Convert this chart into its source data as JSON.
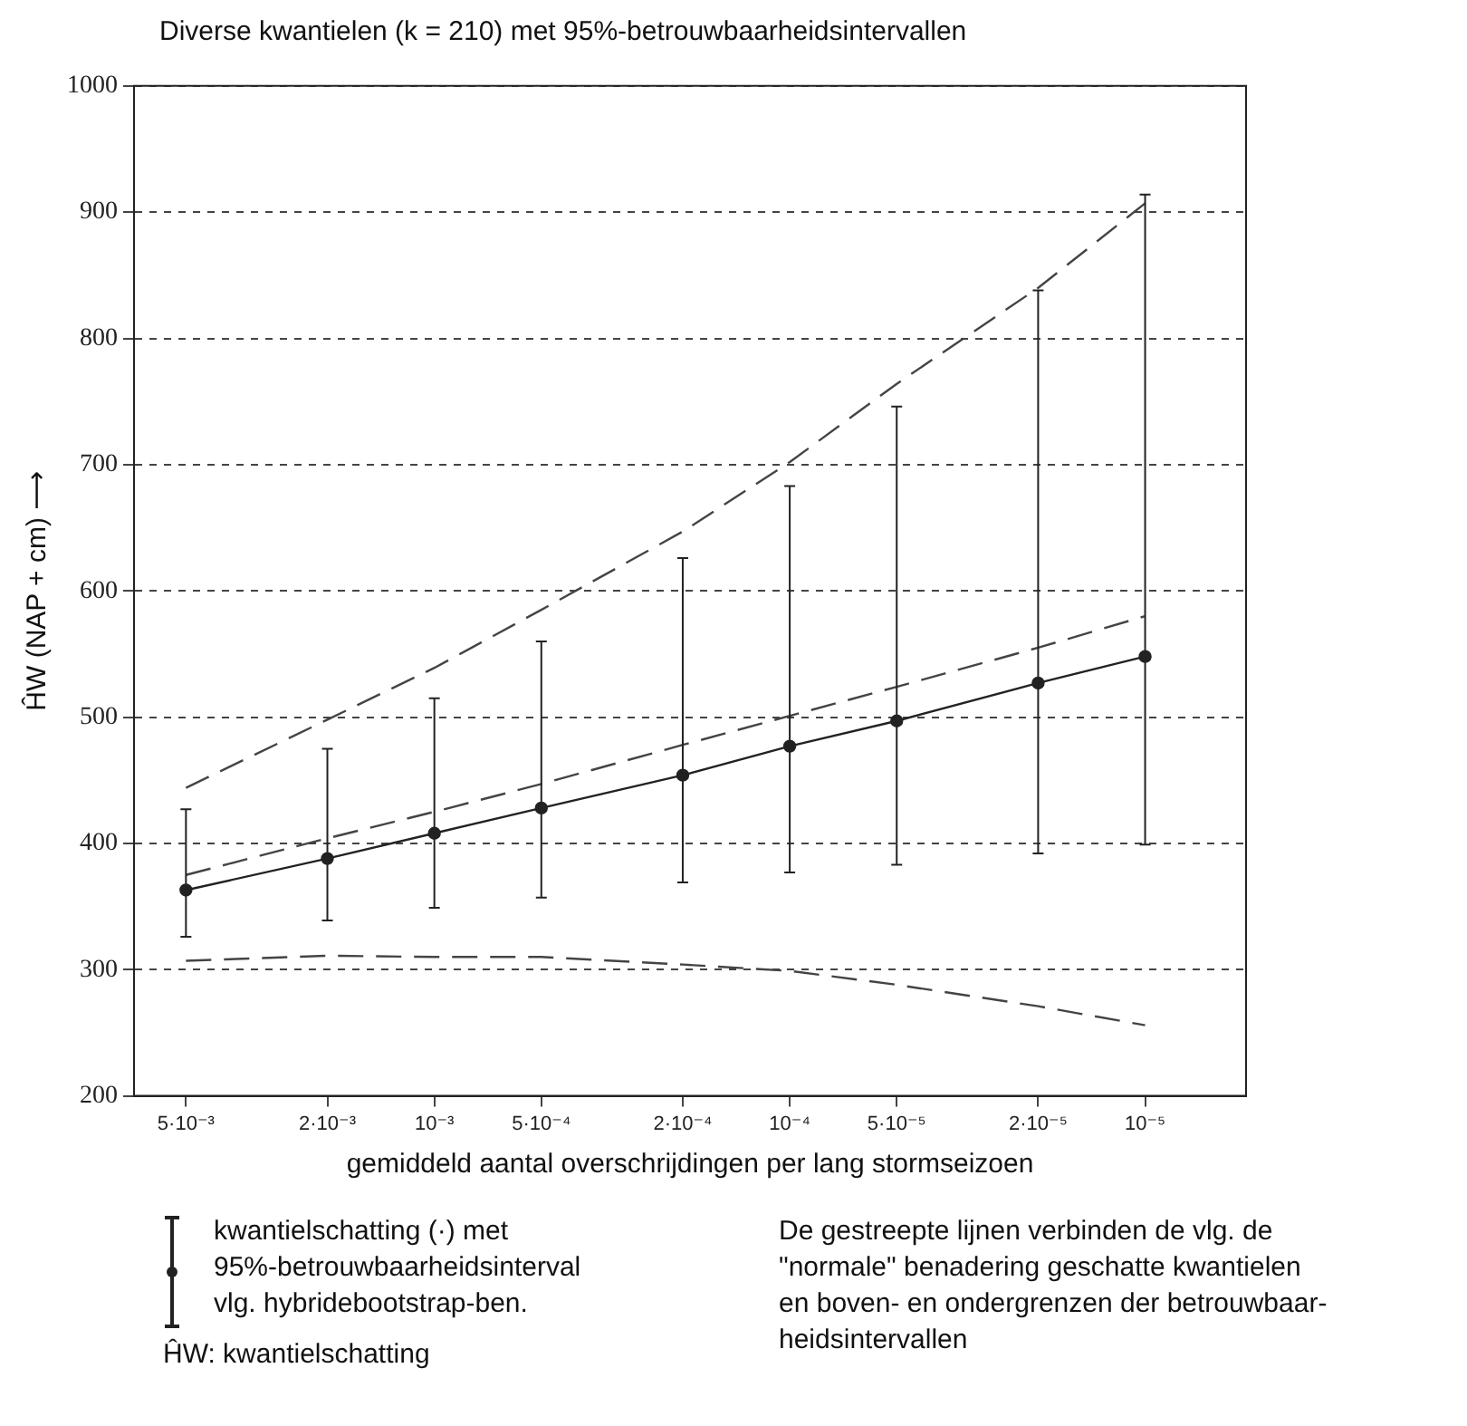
{
  "chart_data": {
    "type": "line",
    "title": "Diverse kwantielen (k = 210) met 95%-betrouwbaarheidsintervallen",
    "xlabel": "gemiddeld aantal overschrijdingen per lang stormseizoen",
    "ylabel": "ĤW (NAP + cm) ⟶",
    "x": [
      0.005,
      0.002,
      0.001,
      0.0005,
      0.0002,
      0.0001,
      5e-05,
      2e-05,
      1e-05
    ],
    "series": [
      {
        "type": "line",
        "color": "#222222",
        "marker": "circle",
        "line_style": "solid",
        "values": [
          363,
          388,
          408,
          428,
          454,
          477,
          497,
          527,
          548
        ],
        "errors": [
          [
            326,
            427
          ],
          [
            339,
            475
          ],
          [
            349,
            515
          ],
          [
            357,
            560
          ],
          [
            369,
            626
          ],
          [
            377,
            683
          ],
          [
            383,
            746
          ],
          [
            392,
            838
          ],
          [
            399,
            914
          ]
        ]
      },
      {
        "type": "line",
        "color": "#444444",
        "marker": "none",
        "line_style": "dashed",
        "values": [
          375,
          404,
          425,
          447,
          478,
          501,
          524,
          555,
          580
        ]
      },
      {
        "type": "line",
        "color": "#444444",
        "marker": "none",
        "line_style": "dashed",
        "values": [
          444,
          498,
          539,
          585,
          647,
          702,
          764,
          840,
          907
        ]
      },
      {
        "type": "line",
        "color": "#444444",
        "marker": "none",
        "line_style": "dashed",
        "values": [
          307,
          311,
          310,
          310,
          304,
          299,
          288,
          271,
          256
        ]
      }
    ],
    "xlim": [
      0.007,
      5.2e-06
    ],
    "xticks": [
      {
        "value": 0.005,
        "label": "5·10⁻³"
      },
      {
        "value": 0.002,
        "label": "2·10⁻³"
      },
      {
        "value": 0.001,
        "label": "10⁻³"
      },
      {
        "value": 0.0005,
        "label": "5·10⁻⁴"
      },
      {
        "value": 0.0002,
        "label": "2·10⁻⁴"
      },
      {
        "value": 0.0001,
        "label": "10⁻⁴"
      },
      {
        "value": 5e-05,
        "label": "5·10⁻⁵"
      },
      {
        "value": 2e-05,
        "label": "2·10⁻⁵"
      },
      {
        "value": 1e-05,
        "label": "10⁻⁵"
      }
    ],
    "ylim": [
      200,
      1000
    ],
    "yticks": [
      200,
      300,
      400,
      500,
      600,
      700,
      800,
      900,
      1000
    ],
    "log": "x",
    "grid": "y",
    "annotations": [
      "kwantielschatting (·) met\n95%-betrouwbaarheidsinterval\nvlg. hybridebootstrap-ben.",
      "ĤW: kwantielschatting",
      "De gestreepte lijnen verbinden de vlg. de\n\"normale\" benadering geschatte kwantielen\nen boven- en ondergrenzen der betrouwbaar-\nheidsintervallen"
    ]
  }
}
